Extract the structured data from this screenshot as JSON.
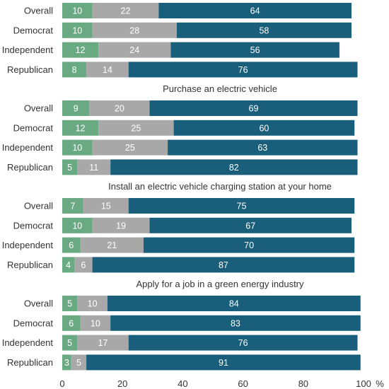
{
  "chart_data": {
    "type": "bar",
    "orientation": "horizontal",
    "stacked": true,
    "xlim": [
      0,
      100
    ],
    "x_ticks": [
      "0",
      "20",
      "40",
      "60",
      "80",
      "100"
    ],
    "x_unit": "%",
    "grid": false,
    "legend": "none",
    "series_colors": [
      "#6aaa82",
      "#a8a8a8",
      "#195e7a"
    ],
    "label_colors": [
      "#ffffff",
      "#ffffff",
      "#ffffff"
    ],
    "panels": [
      {
        "title": "",
        "rows": [
          {
            "label": "Overall",
            "values": [
              10,
              22,
              64
            ]
          },
          {
            "label": "Democrat",
            "values": [
              10,
              28,
              58
            ]
          },
          {
            "label": "Independent",
            "values": [
              12,
              24,
              56
            ]
          },
          {
            "label": "Republican",
            "values": [
              8,
              14,
              76
            ]
          }
        ]
      },
      {
        "title": "Purchase an electric vehicle",
        "rows": [
          {
            "label": "Overall",
            "values": [
              9,
              20,
              69
            ]
          },
          {
            "label": "Democrat",
            "values": [
              12,
              25,
              60
            ]
          },
          {
            "label": "Independent",
            "values": [
              10,
              25,
              63
            ]
          },
          {
            "label": "Republican",
            "values": [
              5,
              11,
              82
            ]
          }
        ]
      },
      {
        "title": "Install an electric vehicle charging station at your home",
        "rows": [
          {
            "label": "Overall",
            "values": [
              7,
              15,
              75
            ]
          },
          {
            "label": "Democrat",
            "values": [
              10,
              19,
              67
            ]
          },
          {
            "label": "Independent",
            "values": [
              6,
              21,
              70
            ]
          },
          {
            "label": "Republican",
            "values": [
              4,
              6,
              87
            ]
          }
        ]
      },
      {
        "title": "Apply for a job in a green energy industry",
        "rows": [
          {
            "label": "Overall",
            "values": [
              5,
              10,
              84
            ]
          },
          {
            "label": "Democrat",
            "values": [
              6,
              10,
              83
            ]
          },
          {
            "label": "Independent",
            "values": [
              5,
              17,
              76
            ]
          },
          {
            "label": "Republican",
            "values": [
              3,
              5,
              91
            ]
          }
        ]
      }
    ]
  }
}
